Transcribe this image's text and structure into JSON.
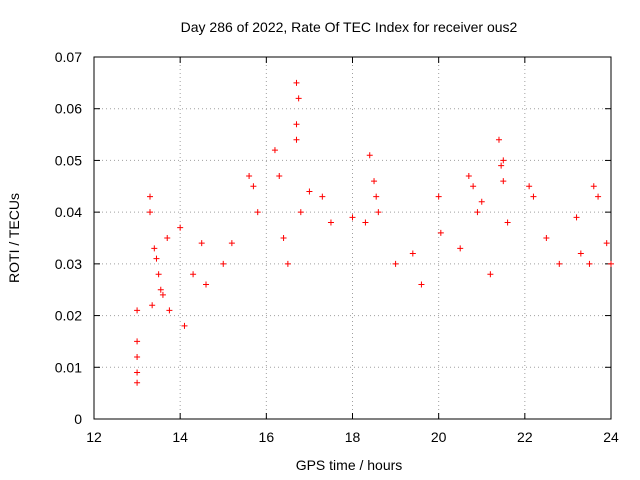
{
  "chart_data": {
    "type": "scatter",
    "title": "Day 286 of 2022, Rate Of TEC Index for receiver ous2",
    "xlabel": "GPS time / hours",
    "ylabel": "ROTI / TECUs",
    "xlim": [
      12,
      24
    ],
    "ylim": [
      0,
      0.07
    ],
    "x_ticks": [
      "12",
      "14",
      "16",
      "18",
      "20",
      "22",
      "24"
    ],
    "y_ticks": [
      "0",
      "0.01",
      "0.02",
      "0.03",
      "0.04",
      "0.05",
      "0.06",
      "0.07"
    ],
    "grid": true,
    "marker": "+",
    "color": "#ff0000",
    "series": [
      {
        "values": [
          [
            13.0,
            0.021
          ],
          [
            13.0,
            0.015
          ],
          [
            13.0,
            0.012
          ],
          [
            13.0,
            0.009
          ],
          [
            13.0,
            0.007
          ],
          [
            13.3,
            0.043
          ],
          [
            13.3,
            0.04
          ],
          [
            13.35,
            0.022
          ],
          [
            13.4,
            0.033
          ],
          [
            13.45,
            0.031
          ],
          [
            13.5,
            0.028
          ],
          [
            13.55,
            0.025
          ],
          [
            13.6,
            0.024
          ],
          [
            13.7,
            0.035
          ],
          [
            13.75,
            0.021
          ],
          [
            14.0,
            0.037
          ],
          [
            14.1,
            0.018
          ],
          [
            14.3,
            0.028
          ],
          [
            14.5,
            0.034
          ],
          [
            14.6,
            0.026
          ],
          [
            15.0,
            0.03
          ],
          [
            15.2,
            0.034
          ],
          [
            15.6,
            0.047
          ],
          [
            15.7,
            0.045
          ],
          [
            15.8,
            0.04
          ],
          [
            16.2,
            0.052
          ],
          [
            16.3,
            0.047
          ],
          [
            16.4,
            0.035
          ],
          [
            16.5,
            0.03
          ],
          [
            16.7,
            0.065
          ],
          [
            16.75,
            0.062
          ],
          [
            16.7,
            0.057
          ],
          [
            16.7,
            0.054
          ],
          [
            16.8,
            0.04
          ],
          [
            17.0,
            0.044
          ],
          [
            17.3,
            0.043
          ],
          [
            17.5,
            0.038
          ],
          [
            18.0,
            0.039
          ],
          [
            18.3,
            0.038
          ],
          [
            18.4,
            0.051
          ],
          [
            18.5,
            0.046
          ],
          [
            18.55,
            0.043
          ],
          [
            18.6,
            0.04
          ],
          [
            19.0,
            0.03
          ],
          [
            19.4,
            0.032
          ],
          [
            19.6,
            0.026
          ],
          [
            20.0,
            0.043
          ],
          [
            20.05,
            0.036
          ],
          [
            20.5,
            0.033
          ],
          [
            20.7,
            0.047
          ],
          [
            20.8,
            0.045
          ],
          [
            20.9,
            0.04
          ],
          [
            21.0,
            0.042
          ],
          [
            21.2,
            0.028
          ],
          [
            21.4,
            0.054
          ],
          [
            21.5,
            0.05
          ],
          [
            21.45,
            0.049
          ],
          [
            21.5,
            0.046
          ],
          [
            21.6,
            0.038
          ],
          [
            22.1,
            0.045
          ],
          [
            22.2,
            0.043
          ],
          [
            22.5,
            0.035
          ],
          [
            22.8,
            0.03
          ],
          [
            23.2,
            0.039
          ],
          [
            23.3,
            0.032
          ],
          [
            23.5,
            0.03
          ],
          [
            23.6,
            0.045
          ],
          [
            23.7,
            0.043
          ],
          [
            23.9,
            0.034
          ],
          [
            24.0,
            0.03
          ]
        ]
      }
    ]
  }
}
